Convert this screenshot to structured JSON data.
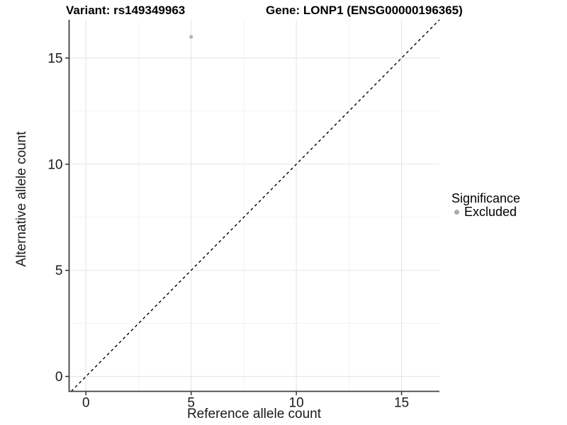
{
  "header": {
    "variant_title": "Variant: rs149349963",
    "gene_title": "Gene: LONP1 (ENSG00000196365)"
  },
  "chart_data": {
    "type": "scatter",
    "xlabel": "Reference allele count",
    "ylabel": "Alternative allele count",
    "xlim": [
      -0.8,
      16.8
    ],
    "ylim": [
      -0.7,
      16.8
    ],
    "x_ticks": [
      0,
      5,
      10,
      15
    ],
    "y_ticks": [
      0,
      5,
      10,
      15
    ],
    "x_minor_ticks": [
      2.5,
      7.5,
      12.5
    ],
    "y_minor_ticks": [
      2.5,
      7.5,
      12.5
    ],
    "grid": true,
    "points": [
      {
        "x": 5,
        "y": 16,
        "series": "Excluded"
      }
    ],
    "reference_line": {
      "type": "identity",
      "style": "dashed",
      "color": "#000000"
    },
    "legend": {
      "title": "Significance",
      "position": "right",
      "items": [
        {
          "label": "Excluded",
          "color": "#aaaaaa"
        }
      ]
    },
    "colors": {
      "point": "#b4b4b4",
      "grid_major": "#e7e7e7",
      "grid_minor": "#f3f3f3",
      "axis": "#404040",
      "tick": "#333333",
      "tick_label": "#1a1a1a"
    }
  }
}
